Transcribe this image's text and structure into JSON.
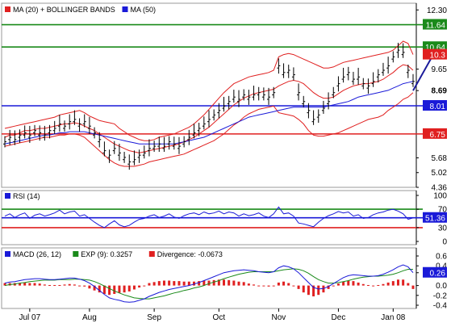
{
  "chart_data": [
    {
      "type": "line",
      "panel": "price",
      "legend": [
        {
          "label": "MA (20) + BOLLINGER BANDS",
          "color": "#e02020"
        },
        {
          "label": "MA (50)",
          "color": "#1a1ad8"
        }
      ],
      "y_ticks": [
        "12.30",
        "9.65",
        "8.69",
        "5.68",
        "5.02",
        "4.36"
      ],
      "ylim": [
        4.36,
        12.6
      ],
      "price_labels": [
        {
          "text": "11.64",
          "value": 11.64,
          "color": "#1a8a1a"
        },
        {
          "text": "10.64",
          "value": 10.64,
          "color": "#1a8a1a"
        },
        {
          "text": "10.3",
          "value": 10.3,
          "color": "#e02020"
        },
        {
          "text": "8.69",
          "value": 8.69,
          "color": "#000000"
        },
        {
          "text": "8.01",
          "value": 8.01,
          "color": "#1a1ad8"
        },
        {
          "text": "6.75",
          "value": 6.75,
          "color": "#e02020"
        }
      ],
      "horizontal_lines": [
        {
          "value": 11.64,
          "color": "#1a8a1a"
        },
        {
          "value": 10.64,
          "color": "#1a8a1a"
        },
        {
          "value": 8.01,
          "color": "#1a1ad8"
        },
        {
          "value": 6.75,
          "color": "#e02020"
        }
      ],
      "price": [
        6.4,
        6.6,
        6.5,
        6.7,
        6.8,
        6.7,
        6.9,
        6.8,
        6.7,
        6.9,
        7.0,
        7.2,
        7.1,
        7.3,
        7.4,
        7.2,
        7.3,
        7.1,
        6.8,
        6.5,
        6.0,
        5.8,
        6.1,
        5.9,
        5.7,
        5.5,
        5.6,
        5.8,
        5.9,
        6.1,
        6.2,
        6.3,
        6.2,
        6.4,
        6.3,
        6.2,
        6.4,
        6.6,
        6.8,
        7.0,
        7.2,
        7.4,
        7.6,
        7.8,
        8.0,
        8.2,
        8.4,
        8.3,
        8.5,
        8.4,
        8.5,
        8.6,
        8.5,
        8.4,
        8.6,
        9.8,
        9.5,
        9.6,
        9.4,
        8.6,
        8.2,
        7.8,
        7.4,
        7.6,
        7.9,
        8.2,
        8.6,
        9.0,
        9.3,
        9.5,
        9.2,
        9.3,
        9.0,
        8.9,
        9.1,
        9.4,
        9.6,
        9.8,
        10.2,
        10.5,
        10.4,
        9.6,
        9.1
      ],
      "ma20": [
        6.6,
        6.7,
        6.7,
        6.8,
        6.9,
        6.9,
        6.95,
        7.0,
        7.0,
        7.05,
        7.1,
        7.15,
        7.2,
        7.2,
        7.25,
        7.2,
        7.1,
        7.0,
        6.9,
        6.75,
        6.6,
        6.45,
        6.3,
        6.2,
        6.1,
        6.0,
        5.95,
        5.9,
        5.95,
        6.0,
        6.05,
        6.1,
        6.15,
        6.2,
        6.25,
        6.3,
        6.4,
        6.5,
        6.6,
        6.75,
        6.9,
        7.05,
        7.25,
        7.45,
        7.65,
        7.85,
        8.05,
        8.2,
        8.35,
        8.45,
        8.55,
        8.6,
        8.65,
        8.7,
        8.75,
        8.9,
        9.0,
        9.1,
        9.15,
        9.1,
        9.0,
        8.8,
        8.6,
        8.45,
        8.35,
        8.35,
        8.4,
        8.55,
        8.7,
        8.8,
        8.9,
        8.95,
        9.0,
        9.0,
        9.05,
        9.1,
        9.2,
        9.35,
        9.5,
        9.7,
        9.85,
        9.8,
        9.6
      ],
      "bb_upper": [
        7.0,
        7.05,
        7.1,
        7.15,
        7.2,
        7.25,
        7.3,
        7.35,
        7.4,
        7.45,
        7.5,
        7.6,
        7.65,
        7.7,
        7.75,
        7.8,
        7.7,
        7.55,
        7.45,
        7.35,
        7.3,
        7.25,
        7.2,
        7.0,
        6.85,
        6.7,
        6.6,
        6.5,
        6.45,
        6.45,
        6.5,
        6.6,
        6.65,
        6.7,
        6.75,
        6.85,
        6.95,
        7.05,
        7.2,
        7.4,
        7.6,
        7.85,
        8.1,
        8.35,
        8.6,
        8.8,
        9.0,
        9.1,
        9.2,
        9.3,
        9.35,
        9.4,
        9.45,
        9.5,
        9.6,
        10.2,
        10.3,
        10.35,
        10.3,
        10.2,
        10.1,
        10.0,
        9.9,
        9.8,
        9.7,
        9.7,
        9.75,
        9.85,
        9.95,
        10.0,
        10.05,
        10.1,
        10.15,
        10.2,
        10.25,
        10.3,
        10.35,
        10.4,
        10.5,
        10.7,
        10.9,
        10.8,
        10.3
      ],
      "bb_lower": [
        6.2,
        6.25,
        6.3,
        6.35,
        6.4,
        6.45,
        6.5,
        6.55,
        6.6,
        6.6,
        6.65,
        6.7,
        6.7,
        6.75,
        6.75,
        6.7,
        6.6,
        6.4,
        6.2,
        6.0,
        5.8,
        5.6,
        5.45,
        5.35,
        5.3,
        5.3,
        5.3,
        5.35,
        5.4,
        5.5,
        5.55,
        5.6,
        5.65,
        5.7,
        5.75,
        5.8,
        5.85,
        5.95,
        6.05,
        6.15,
        6.25,
        6.35,
        6.45,
        6.6,
        6.75,
        6.95,
        7.15,
        7.3,
        7.5,
        7.65,
        7.75,
        7.85,
        7.9,
        7.95,
        8.0,
        7.7,
        7.65,
        7.6,
        7.55,
        7.4,
        7.2,
        6.9,
        6.7,
        6.65,
        6.65,
        6.7,
        6.75,
        6.8,
        6.9,
        7.0,
        7.1,
        7.2,
        7.3,
        7.4,
        7.45,
        7.5,
        7.6,
        7.8,
        7.95,
        8.1,
        8.3,
        8.4,
        8.6
      ],
      "ma50": [
        6.3,
        6.35,
        6.4,
        6.45,
        6.5,
        6.55,
        6.6,
        6.65,
        6.7,
        6.7,
        6.75,
        6.8,
        6.8,
        6.85,
        6.85,
        6.85,
        6.85,
        6.8,
        6.75,
        6.7,
        6.65,
        6.6,
        6.55,
        6.5,
        6.45,
        6.4,
        6.35,
        6.3,
        6.3,
        6.3,
        6.3,
        6.3,
        6.3,
        6.3,
        6.3,
        6.35,
        6.4,
        6.45,
        6.5,
        6.55,
        6.6,
        6.7,
        6.8,
        6.9,
        7.0,
        7.1,
        7.2,
        7.3,
        7.4,
        7.5,
        7.55,
        7.6,
        7.65,
        7.7,
        7.75,
        7.8,
        7.85,
        7.9,
        7.95,
        7.95,
        7.95,
        7.95,
        7.95,
        7.95,
        7.95,
        8.0,
        8.05,
        8.1,
        8.15,
        8.2,
        8.3,
        8.4,
        8.45,
        8.5,
        8.55,
        8.6,
        8.65,
        8.7,
        8.8,
        8.9,
        9.0,
        9.05,
        9.1
      ],
      "forecast_arrow": {
        "from": 8.69,
        "to": 10.64
      }
    },
    {
      "type": "line",
      "panel": "rsi",
      "legend": [
        {
          "label": "RSI (14)",
          "color": "#1a1ad8"
        }
      ],
      "y_ticks": [
        "100",
        "70",
        "30",
        "0"
      ],
      "ylim": [
        0,
        100
      ],
      "current_label": {
        "text": "51.36",
        "value": 51.36
      },
      "levels": [
        {
          "value": 70,
          "color": "#1a8a1a"
        },
        {
          "value": 51.36,
          "color": "#1a1ad8"
        },
        {
          "value": 30,
          "color": "#e02020"
        }
      ],
      "values": [
        55,
        60,
        52,
        58,
        62,
        50,
        57,
        60,
        55,
        58,
        62,
        68,
        60,
        64,
        66,
        55,
        58,
        50,
        42,
        35,
        30,
        38,
        45,
        36,
        32,
        35,
        42,
        48,
        50,
        55,
        58,
        52,
        55,
        60,
        53,
        50,
        56,
        60,
        62,
        58,
        64,
        60,
        62,
        66,
        60,
        64,
        62,
        55,
        60,
        56,
        58,
        62,
        55,
        52,
        60,
        75,
        60,
        62,
        55,
        40,
        38,
        35,
        32,
        42,
        50,
        56,
        60,
        65,
        62,
        64,
        55,
        58,
        50,
        52,
        58,
        62,
        64,
        68,
        70,
        66,
        60,
        48,
        51
      ]
    },
    {
      "type": "line",
      "panel": "macd",
      "legend": [
        {
          "label": "MACD (26, 12)",
          "color": "#1a1ad8"
        },
        {
          "label": "EXP (9): 0.3257",
          "color": "#1a8a1a"
        },
        {
          "label": "Divergence: -0.0673",
          "color": "#e02020"
        }
      ],
      "y_ticks": [
        "0.6",
        "0.4",
        "0.26",
        "0.0",
        "-0.2",
        "-0.4"
      ],
      "ylim": [
        -0.4,
        0.6
      ],
      "current_label": {
        "text": "0.26",
        "value": 0.26
      },
      "macd": [
        0.05,
        0.07,
        0.08,
        0.1,
        0.12,
        0.13,
        0.14,
        0.14,
        0.13,
        0.12,
        0.12,
        0.13,
        0.14,
        0.15,
        0.15,
        0.13,
        0.1,
        0.05,
        -0.02,
        -0.1,
        -0.18,
        -0.25,
        -0.28,
        -0.3,
        -0.33,
        -0.34,
        -0.33,
        -0.3,
        -0.27,
        -0.22,
        -0.18,
        -0.14,
        -0.11,
        -0.08,
        -0.06,
        -0.04,
        -0.02,
        0.0,
        0.03,
        0.06,
        0.1,
        0.14,
        0.18,
        0.22,
        0.26,
        0.28,
        0.3,
        0.31,
        0.32,
        0.31,
        0.3,
        0.28,
        0.27,
        0.26,
        0.28,
        0.36,
        0.4,
        0.38,
        0.34,
        0.26,
        0.16,
        0.06,
        -0.04,
        -0.07,
        -0.06,
        -0.02,
        0.04,
        0.1,
        0.16,
        0.2,
        0.22,
        0.21,
        0.2,
        0.19,
        0.19,
        0.2,
        0.23,
        0.27,
        0.32,
        0.38,
        0.42,
        0.38,
        0.26
      ],
      "signal": [
        0.0,
        0.02,
        0.03,
        0.05,
        0.06,
        0.08,
        0.09,
        0.1,
        0.11,
        0.11,
        0.11,
        0.12,
        0.12,
        0.12,
        0.13,
        0.13,
        0.12,
        0.11,
        0.08,
        0.04,
        -0.01,
        -0.06,
        -0.11,
        -0.15,
        -0.19,
        -0.22,
        -0.25,
        -0.26,
        -0.27,
        -0.27,
        -0.25,
        -0.23,
        -0.21,
        -0.18,
        -0.15,
        -0.13,
        -0.1,
        -0.08,
        -0.05,
        -0.03,
        0.0,
        0.04,
        0.07,
        0.1,
        0.14,
        0.17,
        0.2,
        0.23,
        0.25,
        0.27,
        0.28,
        0.28,
        0.28,
        0.28,
        0.28,
        0.3,
        0.32,
        0.33,
        0.34,
        0.33,
        0.3,
        0.25,
        0.18,
        0.12,
        0.08,
        0.05,
        0.05,
        0.06,
        0.08,
        0.1,
        0.13,
        0.15,
        0.17,
        0.18,
        0.19,
        0.19,
        0.2,
        0.21,
        0.23,
        0.26,
        0.3,
        0.33,
        0.33
      ],
      "divergence": [
        0.05,
        0.05,
        0.05,
        0.05,
        0.06,
        0.05,
        0.05,
        0.04,
        0.02,
        0.01,
        0.01,
        0.01,
        0.02,
        0.03,
        0.02,
        0.0,
        -0.02,
        -0.06,
        -0.1,
        -0.14,
        -0.17,
        -0.19,
        -0.17,
        -0.15,
        -0.14,
        -0.12,
        -0.08,
        -0.04,
        0.0,
        0.05,
        0.07,
        0.09,
        0.1,
        0.1,
        0.09,
        0.09,
        0.08,
        0.08,
        0.08,
        0.09,
        0.1,
        0.1,
        0.11,
        0.12,
        0.12,
        0.11,
        0.1,
        0.08,
        0.07,
        0.04,
        0.02,
        0.0,
        -0.01,
        -0.02,
        0.0,
        0.06,
        0.08,
        0.05,
        0.0,
        -0.07,
        -0.14,
        -0.19,
        -0.22,
        -0.19,
        -0.14,
        -0.07,
        -0.01,
        0.04,
        0.08,
        0.1,
        0.09,
        0.06,
        0.03,
        0.01,
        0.0,
        0.01,
        0.03,
        0.06,
        0.09,
        0.12,
        0.12,
        0.05,
        -0.07
      ]
    }
  ],
  "x_axis": {
    "labels": [
      "Jul 07",
      "Aug",
      "Sep",
      "Oct",
      "Nov",
      "Dec",
      "Jan 08"
    ],
    "at_index": [
      5,
      17,
      30,
      43,
      55,
      67,
      78
    ]
  }
}
